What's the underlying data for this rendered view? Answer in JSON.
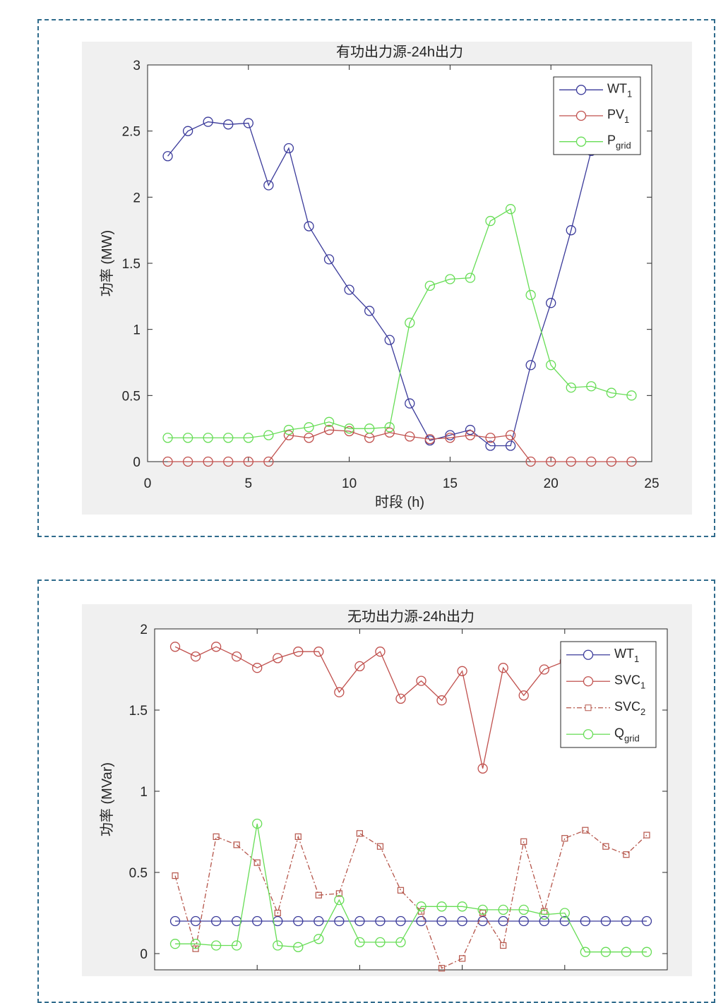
{
  "chart_data": [
    {
      "type": "line",
      "title": "有功出力源-24h出力",
      "xlabel": "时段 (h)",
      "ylabel": "功率 (MW)",
      "xlim": [
        0,
        25
      ],
      "ylim": [
        0,
        3
      ],
      "xticks": [
        "0",
        "5",
        "10",
        "15",
        "20",
        "25"
      ],
      "yticks": [
        "0",
        "0.5",
        "1",
        "1.5",
        "2",
        "2.5",
        "3"
      ],
      "legend_position": "top-right",
      "grid": false,
      "x": [
        1,
        2,
        3,
        4,
        5,
        6,
        7,
        8,
        9,
        10,
        11,
        12,
        13,
        14,
        15,
        16,
        17,
        18,
        19,
        20,
        21,
        22,
        23,
        24
      ],
      "series": [
        {
          "name": "WT",
          "sub": "1",
          "color": "#3a3a9a",
          "line": "solid",
          "marker": "circle",
          "values": [
            2.31,
            2.5,
            2.57,
            2.55,
            2.56,
            2.09,
            2.37,
            1.78,
            1.53,
            1.3,
            1.14,
            0.92,
            0.44,
            0.16,
            0.2,
            0.24,
            0.12,
            0.12,
            0.73,
            1.2,
            1.75,
            2.35,
            2.38,
            2.4
          ]
        },
        {
          "name": "PV",
          "sub": "1",
          "color": "#c0504d",
          "line": "solid",
          "marker": "circle",
          "values": [
            0,
            0,
            0,
            0,
            0,
            0,
            0.2,
            0.18,
            0.24,
            0.23,
            0.18,
            0.22,
            0.19,
            0.17,
            0.18,
            0.2,
            0.18,
            0.2,
            0,
            0,
            0,
            0,
            0,
            0
          ]
        },
        {
          "name": "P",
          "sub": "grid",
          "color": "#66dd55",
          "line": "solid",
          "marker": "circle",
          "values": [
            0.18,
            0.18,
            0.18,
            0.18,
            0.18,
            0.2,
            0.24,
            0.26,
            0.3,
            0.25,
            0.25,
            0.26,
            1.05,
            1.33,
            1.38,
            1.39,
            1.82,
            1.91,
            1.26,
            0.73,
            0.56,
            0.57,
            0.52,
            0.5
          ]
        }
      ]
    },
    {
      "type": "line",
      "title": "无功出力源-24h出力",
      "xlabel": "",
      "ylabel": "功率 (MVar)",
      "xlim": [
        0,
        25
      ],
      "ylim": [
        -0.1,
        2
      ],
      "yticks": [
        "0",
        "0.5",
        "1",
        "1.5",
        "2"
      ],
      "legend_position": "top-right",
      "grid": false,
      "x": [
        1,
        2,
        3,
        4,
        5,
        6,
        7,
        8,
        9,
        10,
        11,
        12,
        13,
        14,
        15,
        16,
        17,
        18,
        19,
        20,
        21,
        22,
        23,
        24
      ],
      "series": [
        {
          "name": "WT",
          "sub": "1",
          "color": "#3a3a9a",
          "line": "solid",
          "marker": "circle",
          "values": [
            0.2,
            0.2,
            0.2,
            0.2,
            0.2,
            0.2,
            0.2,
            0.2,
            0.2,
            0.2,
            0.2,
            0.2,
            0.2,
            0.2,
            0.2,
            0.2,
            0.2,
            0.2,
            0.2,
            0.2,
            0.2,
            0.2,
            0.2,
            0.2
          ]
        },
        {
          "name": "SVC",
          "sub": "1",
          "color": "#c0504d",
          "line": "solid",
          "marker": "circle",
          "values": [
            1.89,
            1.83,
            1.89,
            1.83,
            1.76,
            1.82,
            1.86,
            1.86,
            1.61,
            1.77,
            1.86,
            1.57,
            1.68,
            1.56,
            1.74,
            1.14,
            1.76,
            1.59,
            1.75,
            1.8,
            1.8,
            1.8,
            1.8,
            1.8
          ]
        },
        {
          "name": "SVC",
          "sub": "2",
          "color": "#b5554a",
          "line": "dashdot",
          "marker": "square",
          "values": [
            0.48,
            0.03,
            0.72,
            0.67,
            0.56,
            0.25,
            0.72,
            0.36,
            0.37,
            0.74,
            0.66,
            0.39,
            0.26,
            -0.09,
            -0.03,
            0.25,
            0.05,
            0.69,
            0.26,
            0.71,
            0.76,
            0.66,
            0.61,
            0.73
          ]
        },
        {
          "name": "Q",
          "sub": "grid",
          "color": "#66dd55",
          "line": "solid",
          "marker": "circle",
          "values": [
            0.06,
            0.06,
            0.05,
            0.05,
            0.8,
            0.05,
            0.04,
            0.09,
            0.33,
            0.07,
            0.07,
            0.07,
            0.29,
            0.29,
            0.29,
            0.27,
            0.27,
            0.27,
            0.24,
            0.25,
            0.01,
            0.01,
            0.01,
            0.01
          ]
        }
      ]
    }
  ]
}
